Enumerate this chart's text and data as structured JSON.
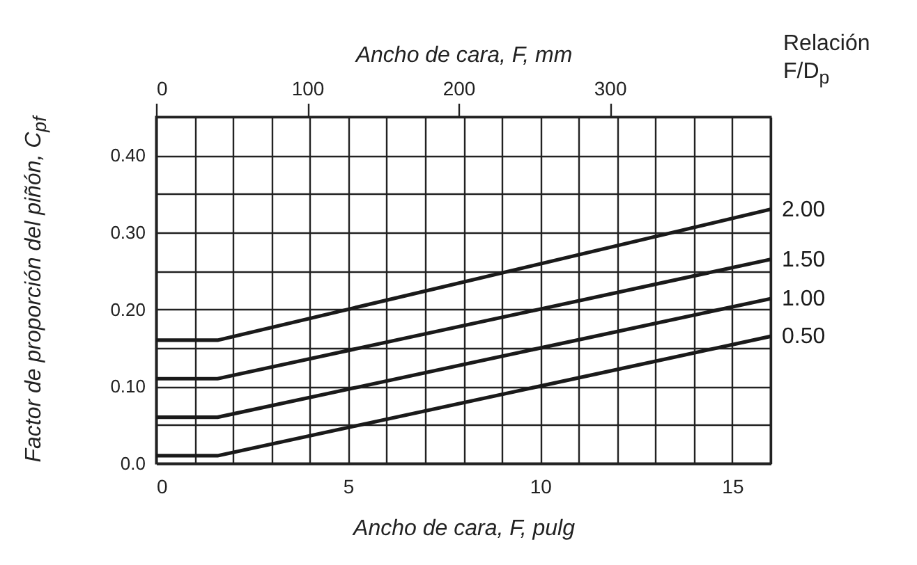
{
  "chart_data": {
    "type": "line",
    "x2label": "Ancho de cara, F, mm",
    "xlabel": "Ancho de cara, F, pulg",
    "ylabel": "Factor de proporción del piñón, C$_{pf}$",
    "legend_title": "Relación F/D$_{p}$",
    "legend": false,
    "grid": true,
    "line_style": "solid",
    "marker": "none",
    "xlim": [
      0,
      16
    ],
    "xticks": [
      0,
      {
        "value": 1,
        "label": null
      },
      {
        "value": 2,
        "label": null
      },
      {
        "value": 3,
        "label": null
      },
      {
        "value": 4,
        "label": null
      },
      5,
      {
        "value": 6,
        "label": null
      },
      {
        "value": 7,
        "label": null
      },
      {
        "value": 8,
        "label": null
      },
      {
        "value": 9,
        "label": null
      },
      10,
      {
        "value": 11,
        "label": null
      },
      {
        "value": 12,
        "label": null
      },
      {
        "value": 13,
        "label": null
      },
      {
        "value": 14,
        "label": null
      },
      15,
      {
        "value": 16,
        "label": null
      }
    ],
    "x2lim": [
      0,
      406.4
    ],
    "x2ticks": [
      0,
      100,
      200,
      300
    ],
    "ylim": [
      0,
      0.45
    ],
    "yticks": [
      {
        "value": 0,
        "label": "0.0"
      },
      {
        "value": 0.05,
        "label": null
      },
      {
        "value": 0.1,
        "label": "0.10"
      },
      {
        "value": 0.15,
        "label": null
      },
      {
        "value": 0.2,
        "label": "0.20"
      },
      {
        "value": 0.25,
        "label": null
      },
      {
        "value": 0.3,
        "label": "0.30"
      },
      {
        "value": 0.35,
        "label": null
      },
      {
        "value": 0.4,
        "label": "0.40"
      },
      {
        "value": 0.45,
        "label": null
      }
    ],
    "series": [
      {
        "name": "2.00",
        "color": "#1a1a1a",
        "x": [
          0,
          1.6,
          16
        ],
        "values": [
          0.16,
          0.16,
          0.33
        ]
      },
      {
        "name": "1.50",
        "color": "#1a1a1a",
        "x": [
          0,
          1.6,
          16
        ],
        "values": [
          0.11,
          0.11,
          0.265
        ]
      },
      {
        "name": "1.00",
        "color": "#1a1a1a",
        "x": [
          0,
          1.6,
          16
        ],
        "values": [
          0.06,
          0.06,
          0.214
        ]
      },
      {
        "name": "0.50",
        "color": "#1a1a1a",
        "x": [
          0,
          1.6,
          16
        ],
        "values": [
          0.01,
          0.01,
          0.165
        ]
      }
    ]
  }
}
